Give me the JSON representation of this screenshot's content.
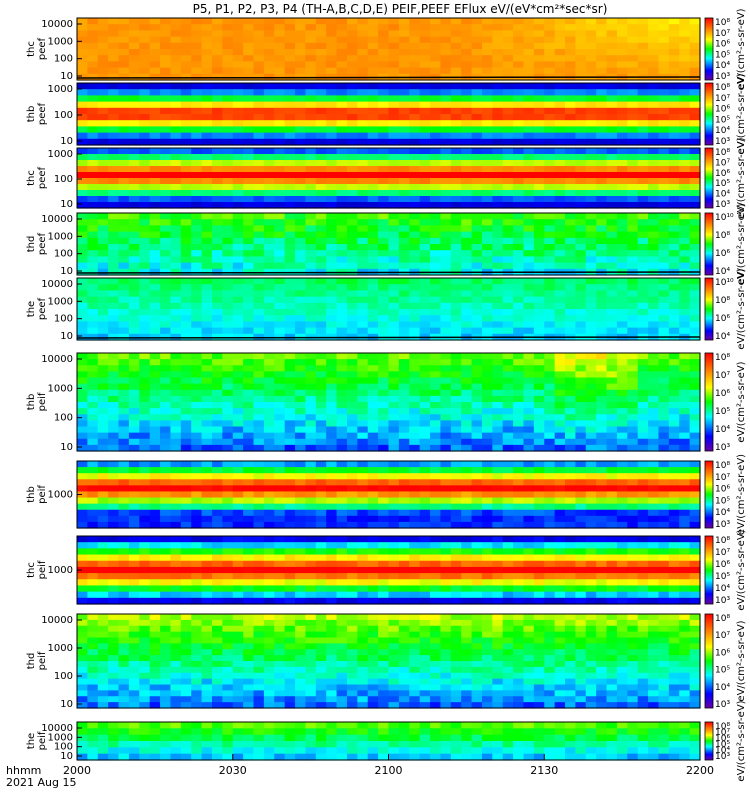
{
  "chart_data": {
    "type": "heatmap",
    "title": "P5, P1, P2, P3, P4 (TH-A,B,C,D,E) PEIF,PEEF EFlux eV/(eV*cm²*sec*sr)",
    "x_label_top": "hhmm",
    "x_label_bottom": "2021 Aug 15",
    "x_ticks": [
      "2000",
      "2030",
      "2100",
      "2130",
      "2200"
    ],
    "colorbar_unit": "eV/(cm²-s-sr-eV)",
    "colormap": [
      "#000080",
      "#0000ff",
      "#00ffff",
      "#00ff00",
      "#ffff00",
      "#ff8000",
      "#ff0000"
    ],
    "panels": [
      {
        "name": "thc peef",
        "y_label": [
          "thc",
          "peef"
        ],
        "y_ticks": [
          "10000",
          "1000",
          "100",
          "10"
        ],
        "cbar_ticks": [
          "10⁸",
          "10⁷",
          "10⁶",
          "10⁵",
          "10⁴",
          "10³"
        ],
        "cbar_unit_text": "eV/(cm²-s-sr-eV)",
        "has_floor_line": true
      },
      {
        "name": "thb peef",
        "y_label": [
          "thb",
          "peef"
        ],
        "y_ticks": [
          "1000",
          "100",
          "10"
        ],
        "cbar_ticks": [
          "10⁸",
          "10⁷",
          "10⁶",
          "10⁵",
          "10⁴",
          "10³"
        ],
        "cbar_unit_text": "eV/(cm²-s-sr-eV)",
        "has_floor_line": false
      },
      {
        "name": "thc peef 2",
        "y_label": [
          "thc",
          "peef"
        ],
        "y_ticks": [
          "1000",
          "100",
          "10"
        ],
        "cbar_ticks": [
          "10⁸",
          "10⁷",
          "10⁶",
          "10⁵",
          "10⁴",
          "10³"
        ],
        "cbar_unit_text": "eV/(cm²-s-sr-eV)",
        "has_floor_line": false
      },
      {
        "name": "thd peef",
        "y_label": [
          "thd",
          "peef"
        ],
        "y_ticks": [
          "10000",
          "1000",
          "100",
          "10"
        ],
        "cbar_ticks": [
          "10¹⁰",
          "10⁸",
          "10⁶",
          "10⁴"
        ],
        "cbar_unit_text": "eV/(cm²-s-sr-eV)",
        "has_floor_line": true
      },
      {
        "name": "the peef",
        "y_label": [
          "the",
          "peef"
        ],
        "y_ticks": [
          "10000",
          "1000",
          "100",
          "10"
        ],
        "cbar_ticks": [
          "10¹⁰",
          "10⁸",
          "10⁶",
          "10⁴"
        ],
        "cbar_unit_text": "eV/(cm²-s-sr-eV)",
        "has_floor_line": true
      },
      {
        "name": "thb peif",
        "y_label": [
          "thb",
          "peif"
        ],
        "y_ticks": [
          "10000",
          "1000",
          "100",
          "10"
        ],
        "cbar_ticks": [
          "10⁸",
          "10⁷",
          "10⁶",
          "10⁵",
          "10⁴",
          "10³"
        ],
        "cbar_unit_text": "eV/(cm²-s-sr-eV)",
        "has_floor_line": false
      },
      {
        "name": "thb peif 2",
        "y_label": [
          "thb",
          "peif"
        ],
        "y_ticks": [
          "1000"
        ],
        "cbar_ticks": [
          "10⁸",
          "10⁷",
          "10⁶",
          "10⁵",
          "10⁴",
          "10³"
        ],
        "cbar_unit_text": "eV/(cm²-s-sr-eV)",
        "has_floor_line": false
      },
      {
        "name": "thc peif",
        "y_label": [
          "thc",
          "peif"
        ],
        "y_ticks": [
          "1000"
        ],
        "cbar_ticks": [
          "10⁸",
          "10⁷",
          "10⁶",
          "10⁵",
          "10⁴",
          "10³"
        ],
        "cbar_unit_text": "eV/(cm²-s-sr-eV)",
        "has_floor_line": false
      },
      {
        "name": "thd peif",
        "y_label": [
          "thd",
          "peif"
        ],
        "y_ticks": [
          "10000",
          "1000",
          "100",
          "10"
        ],
        "cbar_ticks": [
          "10⁸",
          "10⁷",
          "10⁶",
          "10⁵",
          "10⁴",
          "10³"
        ],
        "cbar_unit_text": "eV/(cm²-s-sr-eV)",
        "has_floor_line": false
      },
      {
        "name": "the peif",
        "y_label": [
          "the",
          "peif"
        ],
        "y_ticks": [
          "10000",
          "1000",
          "100",
          "10"
        ],
        "cbar_ticks": [
          "10⁸",
          "10⁷",
          "10⁶",
          "10⁵",
          "10⁴",
          "10³"
        ],
        "cbar_unit_text": "eV/(cm²-s-sr-eV)",
        "has_floor_line": false
      }
    ]
  }
}
